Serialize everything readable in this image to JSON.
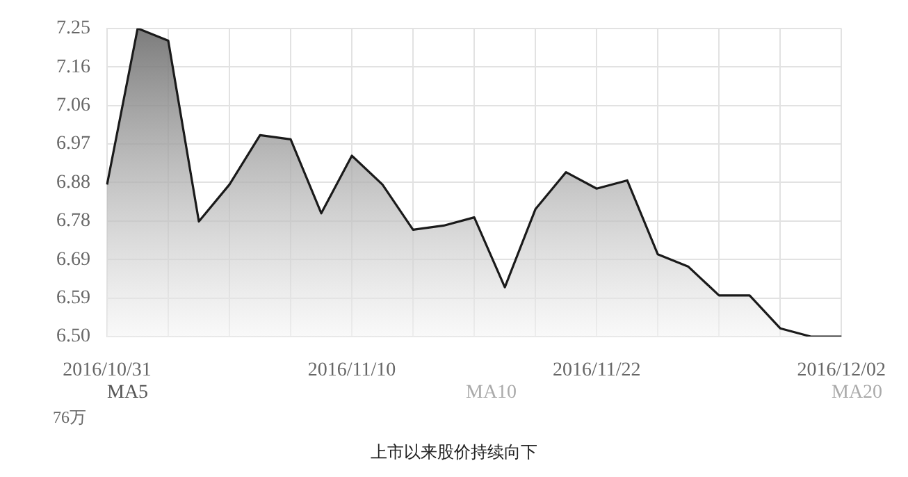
{
  "chart_data": {
    "type": "area",
    "categories": [
      "2016/10/31",
      null,
      null,
      null,
      null,
      null,
      null,
      null,
      "2016/11/10",
      null,
      null,
      null,
      null,
      null,
      null,
      null,
      "2016/11/22",
      null,
      null,
      null,
      null,
      null,
      null,
      null,
      "2016/12/02"
    ],
    "series": [
      {
        "color": "#1a1a1a",
        "values": [
          6.87,
          7.25,
          7.22,
          6.78,
          6.87,
          6.99,
          6.98,
          6.8,
          6.94,
          6.87,
          6.76,
          6.77,
          6.79,
          6.62,
          6.81,
          6.9,
          6.86,
          6.88,
          6.7,
          6.67,
          6.6,
          6.6,
          6.52,
          6.5,
          6.5
        ]
      }
    ],
    "ylim": [
      6.5,
      7.25
    ],
    "yticks": [
      {
        "value": 6.5,
        "label": "6.50"
      },
      {
        "value": 6.59375,
        "label": "6.59"
      },
      {
        "value": 6.6875,
        "label": "6.69"
      },
      {
        "value": 6.78125,
        "label": "6.78"
      },
      {
        "value": 6.875,
        "label": "6.88"
      },
      {
        "value": 6.96875,
        "label": "6.97"
      },
      {
        "value": 7.0625,
        "label": "7.06"
      },
      {
        "value": 7.15625,
        "label": "7.16"
      },
      {
        "value": 7.25,
        "label": "7.25"
      }
    ],
    "grid": true,
    "legend": false,
    "marker": "none",
    "line_style": "solid",
    "annotations": [
      "MA5",
      "MA10",
      "MA20",
      "76万",
      "上市以来股价持续向下"
    ]
  }
}
